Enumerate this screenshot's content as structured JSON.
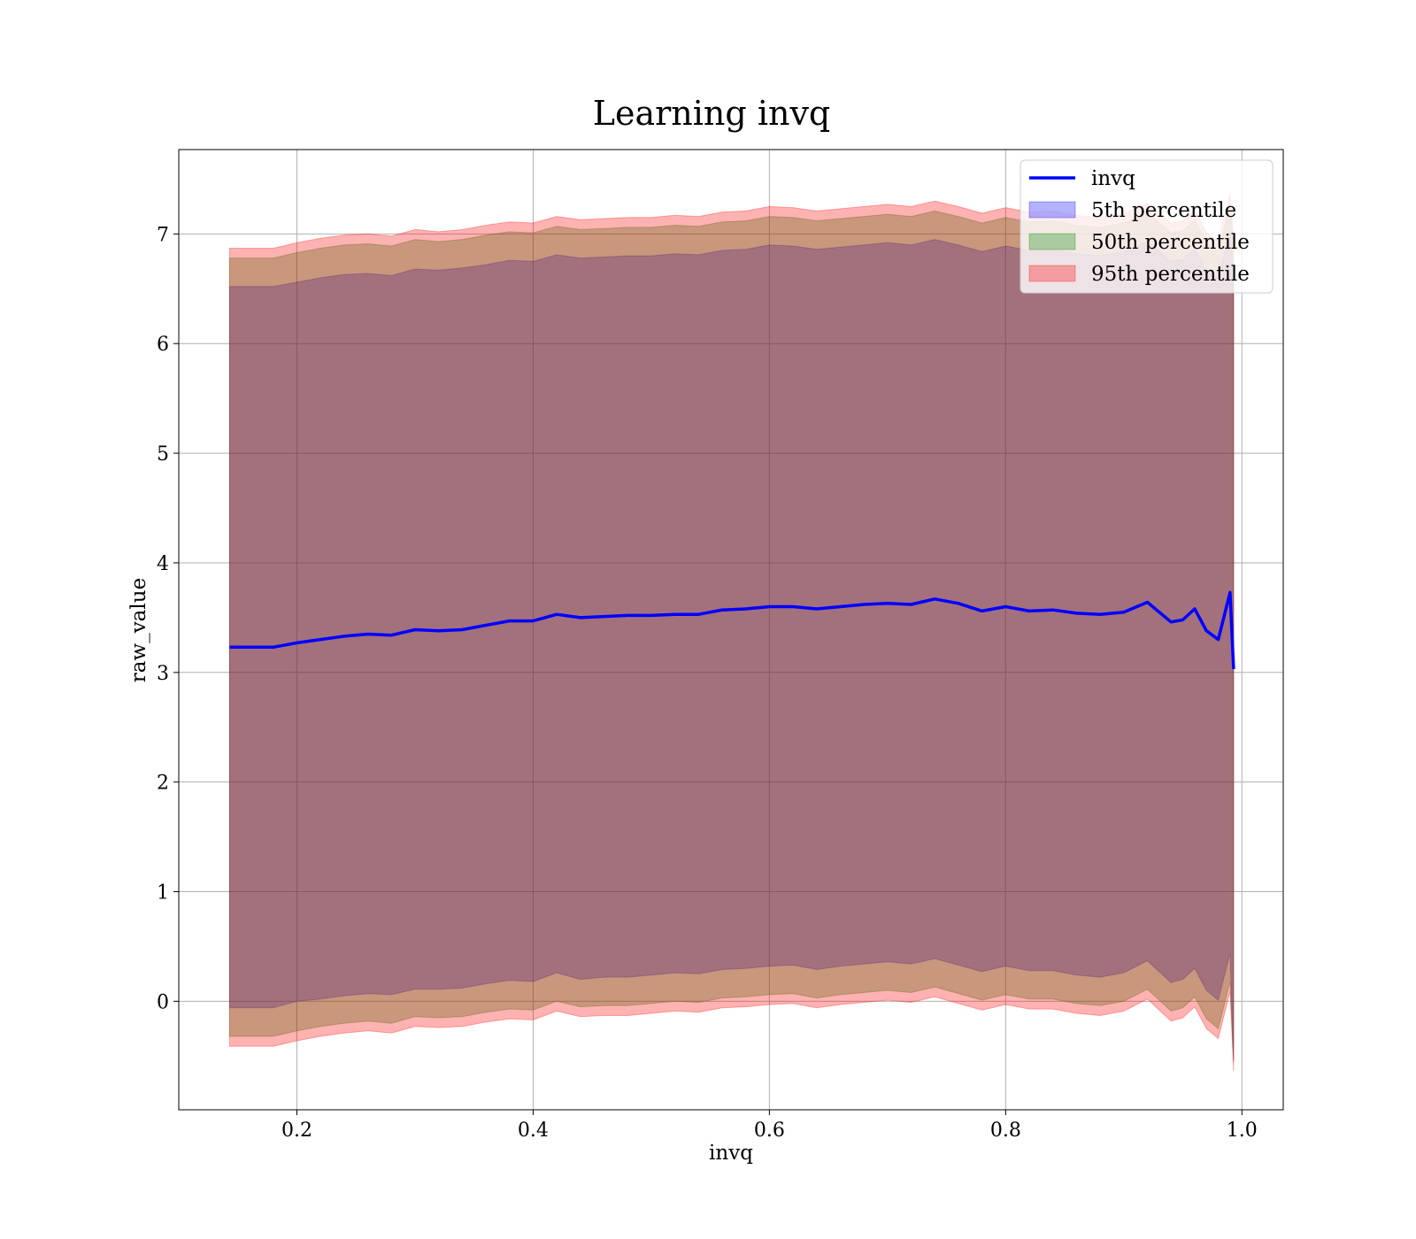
{
  "chart_data": {
    "type": "area",
    "title": "Learning invq",
    "xlabel": "invq",
    "ylabel": "raw_value",
    "xlim": [
      0.1,
      1.035
    ],
    "ylim": [
      -0.99,
      7.77
    ],
    "xticks": [
      {
        "value": 0.2,
        "label": "0.2"
      },
      {
        "value": 0.4,
        "label": "0.4"
      },
      {
        "value": 0.6,
        "label": "0.6"
      },
      {
        "value": 0.8,
        "label": "0.8"
      },
      {
        "value": 1.0,
        "label": "1.0"
      }
    ],
    "yticks": [
      {
        "value": 0,
        "label": "0"
      },
      {
        "value": 1,
        "label": "1"
      },
      {
        "value": 2,
        "label": "2"
      },
      {
        "value": 3,
        "label": "3"
      },
      {
        "value": 4,
        "label": "4"
      },
      {
        "value": 5,
        "label": "5"
      },
      {
        "value": 6,
        "label": "6"
      },
      {
        "value": 7,
        "label": "7"
      }
    ],
    "grid": true,
    "legend_position": "upper right",
    "x": [
      0.143,
      0.16,
      0.18,
      0.2,
      0.22,
      0.24,
      0.26,
      0.28,
      0.3,
      0.32,
      0.34,
      0.36,
      0.38,
      0.4,
      0.42,
      0.44,
      0.46,
      0.48,
      0.5,
      0.52,
      0.54,
      0.56,
      0.58,
      0.6,
      0.62,
      0.64,
      0.66,
      0.68,
      0.7,
      0.72,
      0.74,
      0.76,
      0.78,
      0.8,
      0.82,
      0.84,
      0.86,
      0.88,
      0.9,
      0.92,
      0.94,
      0.95,
      0.96,
      0.97,
      0.98,
      0.99,
      0.993
    ],
    "series": [
      {
        "name": "invq",
        "kind": "line",
        "color": "#0000ff",
        "values": [
          3.23,
          3.23,
          3.23,
          3.27,
          3.3,
          3.33,
          3.35,
          3.34,
          3.39,
          3.38,
          3.39,
          3.43,
          3.47,
          3.47,
          3.53,
          3.5,
          3.51,
          3.52,
          3.52,
          3.53,
          3.53,
          3.57,
          3.58,
          3.6,
          3.6,
          3.58,
          3.6,
          3.62,
          3.63,
          3.62,
          3.67,
          3.63,
          3.56,
          3.6,
          3.56,
          3.57,
          3.54,
          3.53,
          3.55,
          3.64,
          3.46,
          3.48,
          3.58,
          3.38,
          3.3,
          3.73,
          3.03
        ]
      },
      {
        "name": "5th percentile",
        "kind": "band",
        "color": "#0000ff",
        "lower": [
          -0.06,
          -0.06,
          -0.06,
          0.0,
          0.02,
          0.05,
          0.07,
          0.06,
          0.11,
          0.11,
          0.12,
          0.16,
          0.19,
          0.18,
          0.26,
          0.2,
          0.22,
          0.22,
          0.24,
          0.26,
          0.25,
          0.29,
          0.3,
          0.32,
          0.33,
          0.29,
          0.32,
          0.34,
          0.36,
          0.34,
          0.39,
          0.33,
          0.27,
          0.32,
          0.28,
          0.28,
          0.24,
          0.22,
          0.26,
          0.37,
          0.17,
          0.2,
          0.3,
          0.1,
          0.01,
          0.44,
          -0.55
        ],
        "upper": [
          6.52,
          6.52,
          6.52,
          6.56,
          6.6,
          6.63,
          6.64,
          6.62,
          6.68,
          6.67,
          6.69,
          6.72,
          6.76,
          6.75,
          6.81,
          6.78,
          6.79,
          6.8,
          6.8,
          6.82,
          6.81,
          6.85,
          6.86,
          6.9,
          6.89,
          6.86,
          6.88,
          6.9,
          6.92,
          6.9,
          6.95,
          6.9,
          6.84,
          6.89,
          6.85,
          6.86,
          6.82,
          6.8,
          6.84,
          6.93,
          6.75,
          6.77,
          6.87,
          6.66,
          6.59,
          7.02,
          6.62
        ]
      },
      {
        "name": "50th percentile",
        "kind": "band",
        "color": "#008000",
        "lower": [
          -0.32,
          -0.32,
          -0.32,
          -0.27,
          -0.23,
          -0.2,
          -0.18,
          -0.2,
          -0.14,
          -0.15,
          -0.14,
          -0.1,
          -0.07,
          -0.08,
          0.0,
          -0.05,
          -0.04,
          -0.04,
          -0.02,
          0.0,
          -0.01,
          0.03,
          0.04,
          0.06,
          0.07,
          0.03,
          0.06,
          0.08,
          0.1,
          0.08,
          0.13,
          0.07,
          0.01,
          0.06,
          0.02,
          0.02,
          -0.02,
          -0.04,
          0.0,
          0.11,
          -0.09,
          -0.06,
          0.04,
          -0.16,
          -0.25,
          0.18,
          -0.55
        ],
        "upper": [
          6.78,
          6.78,
          6.78,
          6.83,
          6.87,
          6.9,
          6.91,
          6.89,
          6.95,
          6.93,
          6.95,
          6.99,
          7.02,
          7.01,
          7.07,
          7.04,
          7.05,
          7.06,
          7.06,
          7.08,
          7.07,
          7.11,
          7.12,
          7.16,
          7.15,
          7.12,
          7.14,
          7.16,
          7.18,
          7.16,
          7.21,
          7.16,
          7.1,
          7.15,
          7.11,
          7.12,
          7.08,
          7.06,
          7.1,
          7.19,
          7.01,
          7.03,
          7.13,
          6.92,
          6.85,
          7.28,
          6.88
        ]
      },
      {
        "name": "95th percentile",
        "kind": "band",
        "color": "#ff0000",
        "lower": [
          -0.41,
          -0.41,
          -0.41,
          -0.36,
          -0.32,
          -0.29,
          -0.27,
          -0.29,
          -0.23,
          -0.24,
          -0.23,
          -0.19,
          -0.16,
          -0.17,
          -0.09,
          -0.14,
          -0.13,
          -0.13,
          -0.11,
          -0.09,
          -0.1,
          -0.06,
          -0.05,
          -0.03,
          -0.02,
          -0.06,
          -0.03,
          -0.01,
          0.01,
          -0.01,
          0.04,
          -0.02,
          -0.08,
          -0.03,
          -0.07,
          -0.07,
          -0.11,
          -0.13,
          -0.09,
          0.02,
          -0.18,
          -0.15,
          -0.05,
          -0.25,
          -0.34,
          0.09,
          -0.64
        ],
        "upper": [
          6.87,
          6.87,
          6.87,
          6.92,
          6.96,
          6.99,
          7.0,
          6.98,
          7.04,
          7.02,
          7.04,
          7.08,
          7.11,
          7.1,
          7.16,
          7.13,
          7.14,
          7.15,
          7.15,
          7.17,
          7.16,
          7.2,
          7.21,
          7.25,
          7.24,
          7.21,
          7.23,
          7.25,
          7.27,
          7.25,
          7.3,
          7.25,
          7.19,
          7.24,
          7.2,
          7.21,
          7.17,
          7.15,
          7.19,
          7.28,
          7.1,
          7.12,
          7.22,
          7.01,
          6.94,
          7.37,
          6.97
        ]
      }
    ]
  }
}
